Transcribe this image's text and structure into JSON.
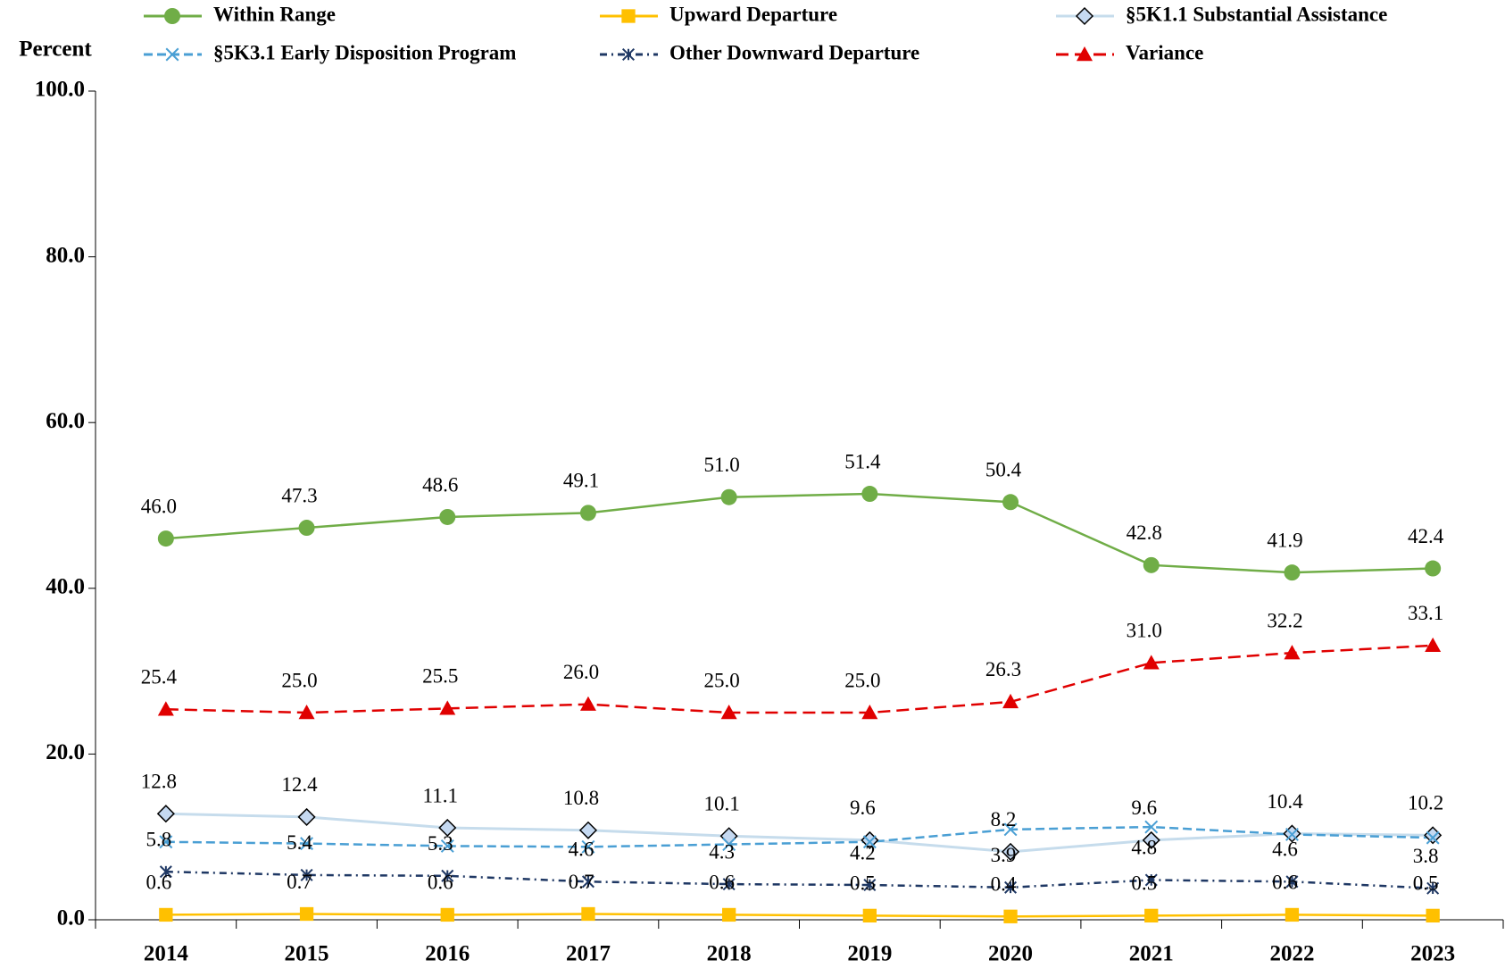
{
  "chart_data": {
    "type": "line",
    "y_axis_label": "Percent",
    "categories": [
      "2014",
      "2015",
      "2016",
      "2017",
      "2018",
      "2019",
      "2020",
      "2021",
      "2022",
      "2023"
    ],
    "series": [
      {
        "name": "Within Range",
        "color": "#70AD47",
        "marker": "circle",
        "dash": "solid",
        "values": [
          46.0,
          47.3,
          48.6,
          49.1,
          51.0,
          51.4,
          50.4,
          42.8,
          41.9,
          42.4
        ],
        "value_labels": [
          "46.0",
          "47.3",
          "48.6",
          "49.1",
          "51.0",
          "51.4",
          "50.4",
          "42.8",
          "41.9",
          "42.4"
        ]
      },
      {
        "name": "Upward Departure",
        "color": "#FFC000",
        "marker": "square",
        "dash": "solid",
        "values": [
          0.6,
          0.7,
          0.6,
          0.7,
          0.6,
          0.5,
          0.4,
          0.5,
          0.6,
          0.5
        ],
        "value_labels": [
          "0.6",
          "0.7",
          "0.6",
          "0.7",
          "0.6",
          "0.5",
          "0.4",
          "0.5",
          "0.6",
          "0.5"
        ]
      },
      {
        "name": "§5K1.1 Substantial Assistance",
        "color": "#C6DCEC",
        "marker": "diamond",
        "dash": "solid",
        "values": [
          12.8,
          12.4,
          11.1,
          10.8,
          10.1,
          9.6,
          8.2,
          9.6,
          10.4,
          10.2
        ],
        "value_labels": [
          "12.8",
          "12.4",
          "11.1",
          "10.8",
          "10.1",
          "9.6",
          "8.2",
          "9.6",
          "10.4",
          "10.2"
        ]
      },
      {
        "name": "§5K3.1 Early Disposition Program",
        "color": "#4A9FD4",
        "marker": "x",
        "dash": "dashed",
        "values": [
          9.4,
          9.2,
          8.9,
          8.8,
          9.1,
          9.4,
          10.9,
          11.2,
          10.3,
          9.9
        ]
      },
      {
        "name": "Other Downward Departure",
        "color": "#1F3864",
        "marker": "asterisk",
        "dash": "dashdot",
        "values": [
          5.8,
          5.4,
          5.3,
          4.6,
          4.3,
          4.2,
          3.9,
          4.8,
          4.6,
          3.8
        ],
        "value_labels": [
          "5.8",
          "5.4",
          "5.3",
          "4.6",
          "4.3",
          "4.2",
          "3.9",
          "4.8",
          "4.6",
          "3.8"
        ]
      },
      {
        "name": "Variance",
        "color": "#E00000",
        "marker": "triangle",
        "dash": "longdash",
        "values": [
          25.4,
          25.0,
          25.5,
          26.0,
          25.0,
          25.0,
          26.3,
          31.0,
          32.2,
          33.1
        ],
        "value_labels": [
          "25.4",
          "25.0",
          "25.5",
          "26.0",
          "25.0",
          "25.0",
          "26.3",
          "31.0",
          "32.2",
          "33.1"
        ]
      }
    ],
    "ylim": [
      0,
      100
    ],
    "yticks": [
      {
        "value": 0,
        "label": "0.0"
      },
      {
        "value": 20,
        "label": "20.0"
      },
      {
        "value": 40,
        "label": "40.0"
      },
      {
        "value": 60,
        "label": "60.0"
      },
      {
        "value": 80,
        "label": "80.0"
      },
      {
        "value": 100,
        "label": "100.0"
      }
    ],
    "grid": false,
    "legend": "top"
  }
}
